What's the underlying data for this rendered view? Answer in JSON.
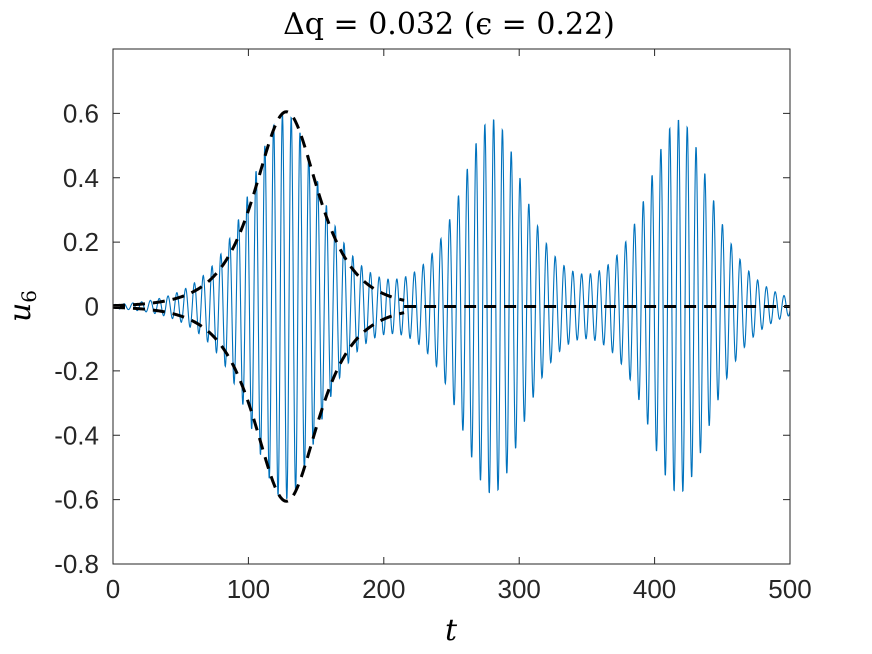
{
  "chart_data": {
    "type": "line",
    "title": "Δq = 0.032 (ϵ = 0.22)",
    "xlabel": "t",
    "ylabel": "u6",
    "xlim": [
      0,
      500
    ],
    "ylim": [
      -0.8,
      0.8
    ],
    "x_ticks": [
      "0",
      "100",
      "200",
      "300",
      "400",
      "500"
    ],
    "y_ticks": [
      "-0.8",
      "-0.6",
      "-0.4",
      "-0.2",
      "0",
      "0.2",
      "0.4",
      "0.6"
    ],
    "grid": false,
    "series": [
      {
        "style": "solid",
        "color": "#0072BD",
        "description_values": {
          "period": 6.5,
          "packets": [
            {
              "center": 127,
              "amplitude": 0.6,
              "width": 24
            },
            {
              "center": 280,
              "amplitude": 0.58,
              "width": 22
            },
            {
              "center": 418,
              "amplitude": 0.58,
              "width": 22
            }
          ],
          "x_range": [
            0,
            500
          ]
        }
      },
      {
        "style": "dashed",
        "color": "#000000",
        "description_values": {
          "envelope_center": 128,
          "envelope_amplitude": 0.605,
          "envelope_width": 21,
          "x_range_envelope": [
            0,
            215
          ],
          "x_range_zero_line": [
            215,
            500
          ]
        }
      }
    ]
  }
}
